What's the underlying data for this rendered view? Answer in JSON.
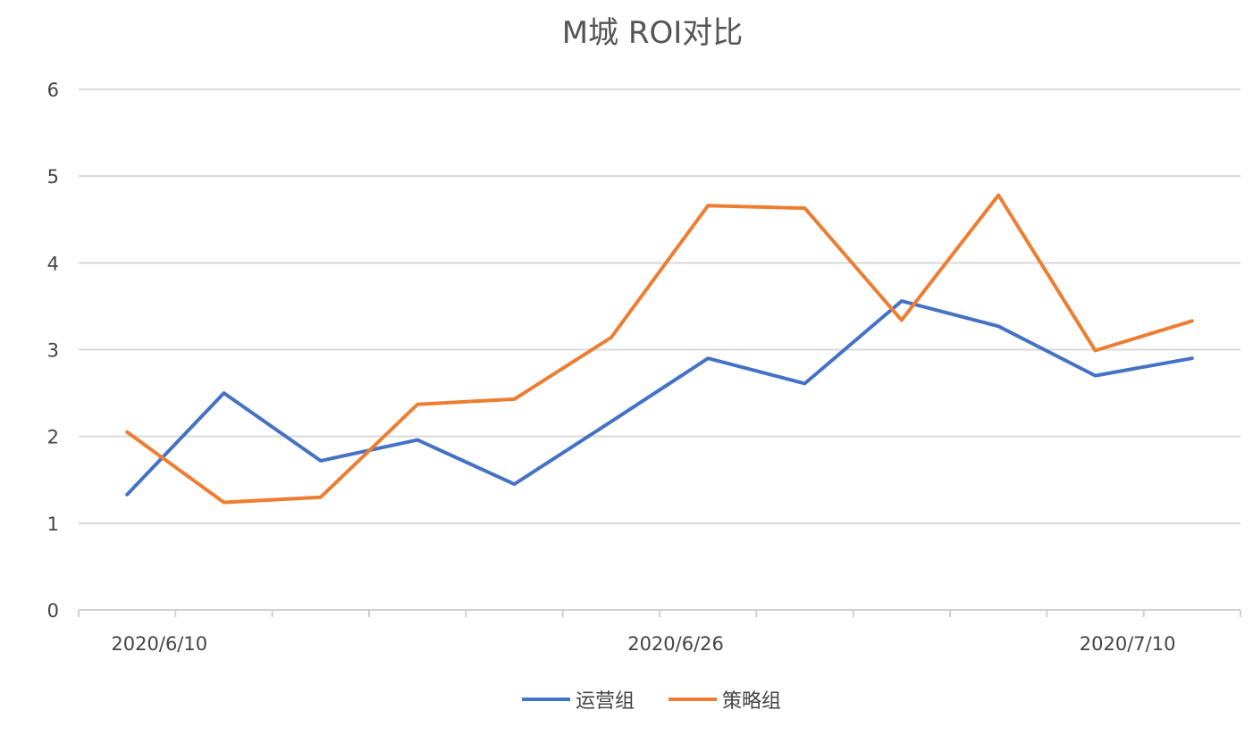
{
  "chart_data": {
    "type": "line",
    "title": "M城 ROI对比",
    "xlabel": "",
    "ylabel": "",
    "ylim": [
      0,
      6
    ],
    "yticks": [
      0,
      1,
      2,
      3,
      4,
      5,
      6
    ],
    "grid": true,
    "legend_position": "bottom",
    "x_tick_labels": [
      "2020/6/10",
      "2020/6/26",
      "2020/7/10"
    ],
    "x": [
      "2020/6/9",
      "2020/6/12",
      "2020/6/15",
      "2020/6/18",
      "2020/6/21",
      "2020/6/24",
      "2020/6/27",
      "2020/6/30",
      "2020/7/3",
      "2020/7/6",
      "2020/7/9",
      "2020/7/12"
    ],
    "series": [
      {
        "name": "运营组",
        "color": "#4472C4",
        "values": [
          1.33,
          2.5,
          1.72,
          1.96,
          1.45,
          2.17,
          2.9,
          2.61,
          3.56,
          3.27,
          2.7,
          2.9
        ]
      },
      {
        "name": "策略组",
        "color": "#ED7D31",
        "values": [
          2.05,
          1.24,
          1.3,
          2.37,
          2.43,
          3.14,
          4.66,
          4.63,
          3.34,
          4.78,
          2.99,
          3.33
        ]
      }
    ]
  }
}
